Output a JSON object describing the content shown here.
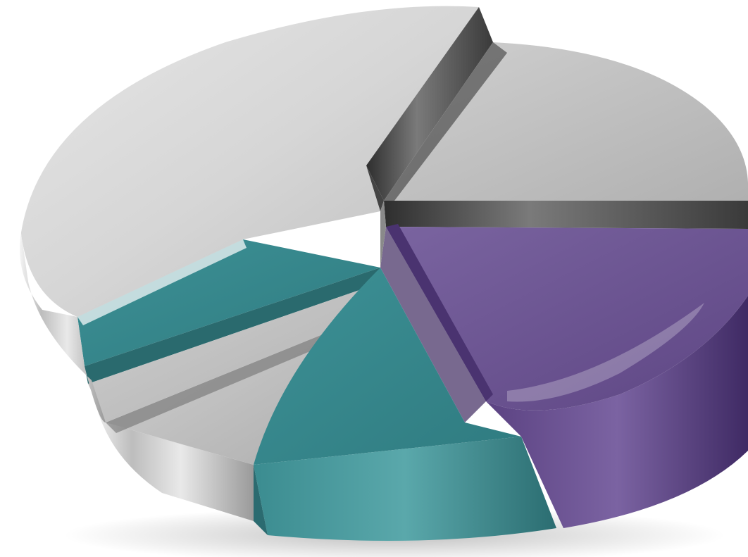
{
  "colors": {
    "background": "#ffffff",
    "silver_light": "#e2e2e2",
    "silver_mid": "#c4c4c4",
    "silver_dark": "#5a5a5a",
    "teal": "#3f8f93",
    "teal_dark": "#2b6b70",
    "purple": "#6f5893",
    "purple_dark": "#4b3570"
  },
  "slices": [
    {
      "name": "large-silver-slice",
      "material": "silver",
      "raised": true
    },
    {
      "name": "upper-right-silver-slice",
      "material": "silver",
      "raised": false
    },
    {
      "name": "purple-slice",
      "material": "purple",
      "raised": true
    },
    {
      "name": "front-teal-slice",
      "material": "teal",
      "raised": false
    },
    {
      "name": "lower-silver-slice",
      "material": "silver",
      "raised": false
    },
    {
      "name": "left-teal-slice",
      "material": "teal",
      "raised": false
    }
  ]
}
